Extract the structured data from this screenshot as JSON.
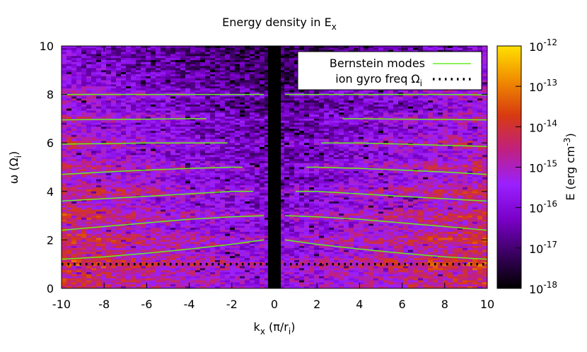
{
  "chart_data": {
    "type": "heatmap",
    "title": {
      "main": "Energy density in E",
      "sub": "x"
    },
    "xlabel": {
      "main": "k",
      "sub": "x",
      "unit": " (π/r",
      "unit_sub": "i",
      "close": ")"
    },
    "ylabel": {
      "main": "ω (Ω",
      "sub": "i",
      "close": ")"
    },
    "cblabel": {
      "main": "E (erg cm",
      "sup": "-3",
      "close": ")"
    },
    "xlim": [
      -10,
      10
    ],
    "ylim": [
      0,
      10
    ],
    "x_ticks": [
      "-10",
      "-8",
      "-6",
      "-4",
      "-2",
      "0",
      "2",
      "4",
      "6",
      "8",
      "10"
    ],
    "y_ticks": [
      "0",
      "2",
      "4",
      "6",
      "8",
      "10"
    ],
    "colorbar": {
      "scale": "log",
      "range": [
        1e-18,
        1e-12
      ],
      "ticks": [
        {
          "base": "10",
          "exp": "-12"
        },
        {
          "base": "10",
          "exp": "-13"
        },
        {
          "base": "10",
          "exp": "-14"
        },
        {
          "base": "10",
          "exp": "-15"
        },
        {
          "base": "10",
          "exp": "-16"
        },
        {
          "base": "10",
          "exp": "-17"
        },
        {
          "base": "10",
          "exp": "-18"
        }
      ],
      "colors": [
        "#000000",
        "#3a0060",
        "#7a00c8",
        "#9a20ff",
        "#c02080",
        "#d83a10",
        "#f08c00",
        "#ffe000"
      ]
    },
    "excluded_band": {
      "kx": [
        -0.3,
        0.3
      ],
      "color": "#000000"
    },
    "series": [
      {
        "name": "Bernstein modes",
        "color": "#66ee22",
        "style": "solid",
        "curves": [
          {
            "kx": [
              -10,
              -8,
              -6,
              -4,
              -2,
              -0.5
            ],
            "omega": [
              8.0,
              8.0,
              8.0,
              8.0,
              8.0,
              8.0
            ]
          },
          {
            "kx": [
              -10,
              -8,
              -6,
              -4,
              -3.2
            ],
            "omega": [
              6.95,
              6.97,
              6.98,
              7.0,
              7.0
            ]
          },
          {
            "kx": [
              -10,
              -8,
              -6,
              -4,
              -2.2
            ],
            "omega": [
              5.95,
              5.97,
              6.0,
              6.0,
              6.0
            ]
          },
          {
            "kx": [
              -10,
              -8,
              -6,
              -4,
              -2,
              -1.5
            ],
            "omega": [
              4.7,
              4.8,
              4.88,
              4.95,
              5.0,
              5.0
            ]
          },
          {
            "kx": [
              -10,
              -8,
              -6,
              -4,
              -2,
              -1
            ],
            "omega": [
              3.6,
              3.7,
              3.8,
              3.9,
              4.0,
              4.0
            ]
          },
          {
            "kx": [
              -10,
              -8,
              -6,
              -4,
              -2,
              -0.5
            ],
            "omega": [
              2.4,
              2.55,
              2.7,
              2.85,
              2.95,
              3.0
            ]
          },
          {
            "kx": [
              -10,
              -8,
              -6,
              -4,
              -2,
              -0.5
            ],
            "omega": [
              1.2,
              1.3,
              1.45,
              1.62,
              1.82,
              2.0
            ]
          },
          {
            "kx": [
              0.5,
              2,
              4,
              6,
              8,
              10
            ],
            "omega": [
              8.0,
              8.0,
              8.0,
              8.0,
              8.0,
              7.98
            ]
          },
          {
            "kx": [
              3.2,
              4,
              6,
              8,
              10
            ],
            "omega": [
              7.0,
              7.0,
              6.98,
              6.97,
              6.95
            ]
          },
          {
            "kx": [
              2.2,
              4,
              6,
              8,
              10
            ],
            "omega": [
              6.0,
              6.0,
              5.95,
              5.9,
              5.85
            ]
          },
          {
            "kx": [
              1.5,
              2,
              4,
              6,
              8,
              10
            ],
            "omega": [
              5.0,
              5.0,
              4.95,
              4.88,
              4.8,
              4.7
            ]
          },
          {
            "kx": [
              1,
              2,
              4,
              6,
              8,
              10
            ],
            "omega": [
              4.0,
              4.0,
              3.9,
              3.8,
              3.7,
              3.6
            ]
          },
          {
            "kx": [
              0.5,
              2,
              4,
              6,
              8,
              10
            ],
            "omega": [
              3.0,
              2.95,
              2.85,
              2.7,
              2.55,
              2.4
            ]
          },
          {
            "kx": [
              0.5,
              2,
              4,
              6,
              8,
              10
            ],
            "omega": [
              2.0,
              1.82,
              1.62,
              1.45,
              1.3,
              1.2
            ]
          }
        ]
      },
      {
        "name": "ion gyro freq Ω",
        "name_sub": "i",
        "color": "#000000",
        "style": "dotted",
        "curves": [
          {
            "kx": [
              -10,
              10
            ],
            "omega": [
              1.0,
              1.0
            ]
          }
        ]
      }
    ],
    "legend_position": "top-right"
  }
}
